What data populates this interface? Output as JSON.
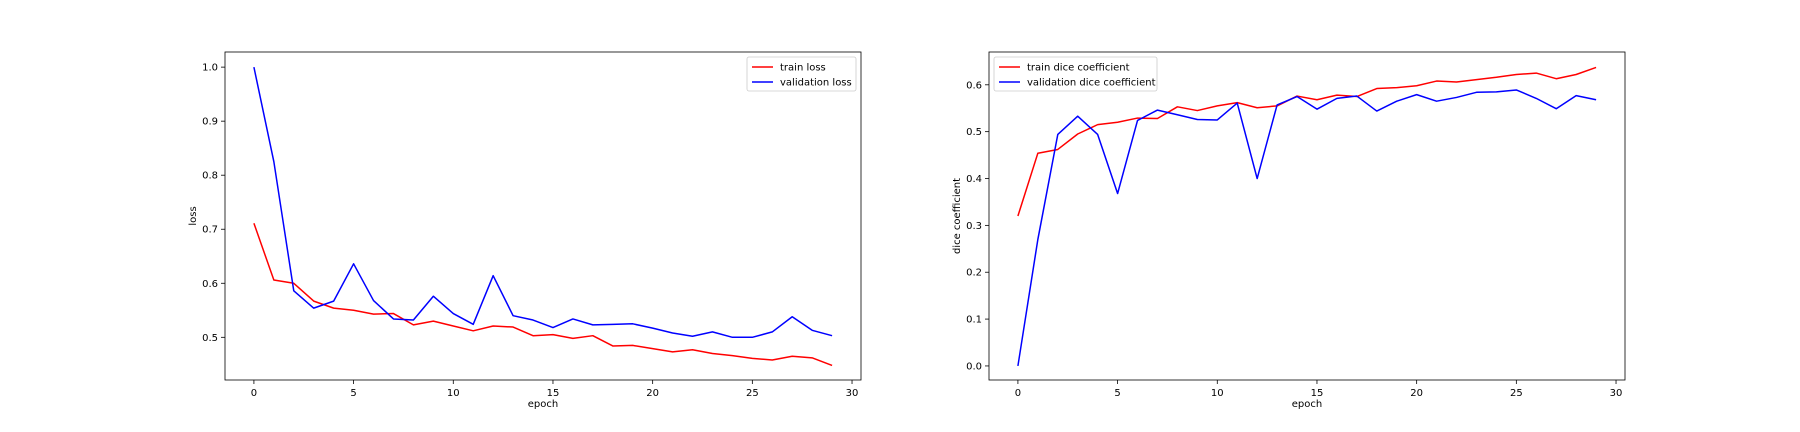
{
  "chart_data": [
    {
      "type": "line",
      "xlabel": "epoch",
      "ylabel": "loss",
      "xlim": [
        -1.45,
        30.45
      ],
      "ylim": [
        0.421,
        1.028
      ],
      "xticks": [
        0,
        5,
        10,
        15,
        20,
        25,
        30
      ],
      "yticks": [
        0.5,
        0.6,
        0.7,
        0.8,
        0.9,
        1.0
      ],
      "x": [
        0,
        1,
        2,
        3,
        4,
        5,
        6,
        7,
        8,
        9,
        10,
        11,
        12,
        13,
        14,
        15,
        16,
        17,
        18,
        19,
        20,
        21,
        22,
        23,
        24,
        25,
        26,
        27,
        28,
        29
      ],
      "legend_position": "top-right",
      "series": [
        {
          "name": "train loss",
          "color": "#ff0000",
          "values": [
            0.711,
            0.606,
            0.6,
            0.567,
            0.554,
            0.55,
            0.543,
            0.544,
            0.523,
            0.53,
            0.521,
            0.512,
            0.521,
            0.519,
            0.503,
            0.505,
            0.498,
            0.503,
            0.484,
            0.485,
            0.479,
            0.473,
            0.477,
            0.47,
            0.466,
            0.461,
            0.458,
            0.465,
            0.462,
            0.448
          ]
        },
        {
          "name": "validation loss",
          "color": "#0000ff",
          "values": [
            1.0,
            0.825,
            0.586,
            0.554,
            0.567,
            0.636,
            0.568,
            0.534,
            0.532,
            0.576,
            0.544,
            0.524,
            0.614,
            0.54,
            0.532,
            0.518,
            0.534,
            0.523,
            0.524,
            0.525,
            0.517,
            0.508,
            0.502,
            0.51,
            0.5,
            0.5,
            0.51,
            0.538,
            0.513,
            0.503
          ]
        }
      ]
    },
    {
      "type": "line",
      "xlabel": "epoch",
      "ylabel": "dice coefficient",
      "xlim": [
        -1.45,
        30.45
      ],
      "ylim": [
        -0.03,
        0.67
      ],
      "xticks": [
        0,
        5,
        10,
        15,
        20,
        25,
        30
      ],
      "yticks": [
        0.0,
        0.1,
        0.2,
        0.3,
        0.4,
        0.5,
        0.6
      ],
      "x": [
        0,
        1,
        2,
        3,
        4,
        5,
        6,
        7,
        8,
        9,
        10,
        11,
        12,
        13,
        14,
        15,
        16,
        17,
        18,
        19,
        20,
        21,
        22,
        23,
        24,
        25,
        26,
        27,
        28,
        29
      ],
      "legend_position": "top-left",
      "series": [
        {
          "name": "train dice coefficient",
          "color": "#ff0000",
          "values": [
            0.32,
            0.454,
            0.462,
            0.495,
            0.515,
            0.52,
            0.529,
            0.528,
            0.553,
            0.545,
            0.555,
            0.562,
            0.551,
            0.555,
            0.576,
            0.568,
            0.578,
            0.575,
            0.592,
            0.594,
            0.598,
            0.608,
            0.606,
            0.611,
            0.616,
            0.622,
            0.625,
            0.613,
            0.622,
            0.637
          ]
        },
        {
          "name": "validation dice coefficient",
          "color": "#0000ff",
          "values": [
            0.0,
            0.27,
            0.494,
            0.533,
            0.494,
            0.368,
            0.524,
            0.546,
            0.536,
            0.526,
            0.525,
            0.561,
            0.4,
            0.557,
            0.575,
            0.548,
            0.571,
            0.576,
            0.544,
            0.565,
            0.579,
            0.565,
            0.573,
            0.584,
            0.585,
            0.589,
            0.571,
            0.549,
            0.577,
            0.568
          ]
        }
      ]
    }
  ]
}
